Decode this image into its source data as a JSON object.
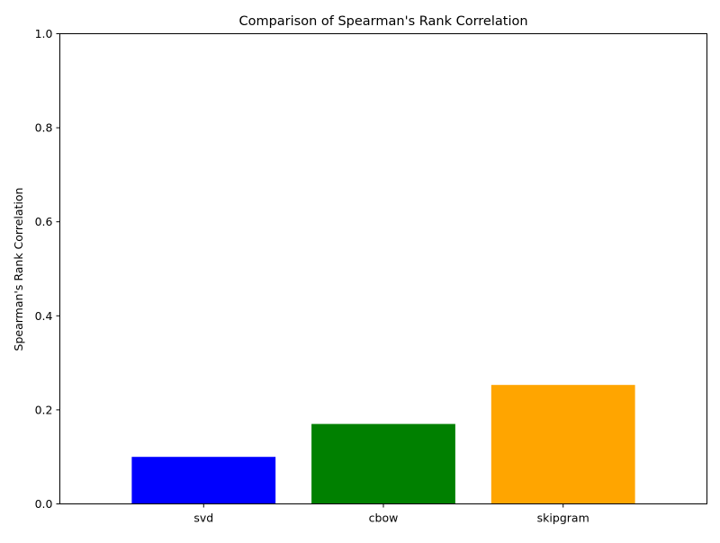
{
  "chart_data": {
    "type": "bar",
    "title": "Comparison of Spearman's Rank Correlation",
    "xlabel": "",
    "ylabel": "Spearman's Rank Correlation",
    "categories": [
      "svd",
      "cbow",
      "skipgram"
    ],
    "values": [
      0.1,
      0.17,
      0.253
    ],
    "colors": [
      "#0000ff",
      "#008000",
      "#ffa500"
    ],
    "ylim": [
      0,
      1
    ],
    "yticks": [
      0.0,
      0.2,
      0.4,
      0.6,
      0.8,
      1.0
    ],
    "ytick_labels": [
      "0.0",
      "0.2",
      "0.4",
      "0.6",
      "0.8",
      "1.0"
    ],
    "grid": false,
    "legend": "none"
  }
}
